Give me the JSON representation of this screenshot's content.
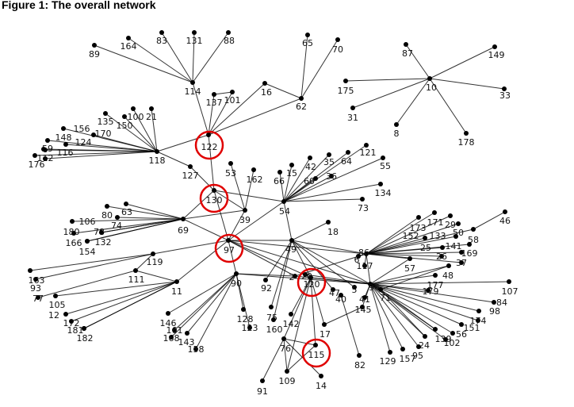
{
  "figure": {
    "title": "Figure 1: The overall network"
  },
  "colors": {
    "edge": "#000000",
    "node": "#000000",
    "highlight": "#e00000"
  },
  "highlighted": [
    "122",
    "130",
    "97",
    "120",
    "115"
  ],
  "nodes": [
    "89",
    "164",
    "83",
    "131",
    "88",
    "114",
    "65",
    "70",
    "16",
    "62",
    "137",
    "101",
    "175",
    "31",
    "87",
    "149",
    "10",
    "33",
    "8",
    "178",
    "118",
    "21",
    "100",
    "150",
    "135",
    "156",
    "170",
    "148",
    "124",
    "116",
    "59",
    "112",
    "176",
    "127",
    "122",
    "130",
    "53",
    "162",
    "39",
    "54",
    "66",
    "15",
    "42",
    "60",
    "35",
    "64",
    "36",
    "121",
    "55",
    "134",
    "73",
    "69",
    "63",
    "80",
    "74",
    "106",
    "78",
    "180",
    "132",
    "166",
    "154",
    "97",
    "119",
    "111",
    "11",
    "163",
    "93",
    "77",
    "105",
    "12",
    "172",
    "181",
    "182",
    "90",
    "128",
    "123",
    "146",
    "161",
    "168",
    "143",
    "158",
    "92",
    "49",
    "18",
    "2",
    "20",
    "120",
    "47",
    "40",
    "5",
    "6",
    "117",
    "86",
    "96",
    "71",
    "41",
    "145",
    "75",
    "160",
    "142",
    "17",
    "76",
    "115",
    "109",
    "91",
    "14",
    "82",
    "173",
    "171",
    "29",
    "50",
    "46",
    "58",
    "152",
    "133",
    "141",
    "25",
    "169",
    "26",
    "37",
    "57",
    "48",
    "177",
    "179",
    "107",
    "84",
    "98",
    "174",
    "151",
    "56",
    "102",
    "139",
    "24",
    "95",
    "157",
    "129"
  ],
  "edges": [
    [
      "114",
      "89"
    ],
    [
      "114",
      "164"
    ],
    [
      "114",
      "83"
    ],
    [
      "114",
      "131"
    ],
    [
      "114",
      "88"
    ],
    [
      "114",
      "122"
    ],
    [
      "137",
      "101"
    ],
    [
      "137",
      "122"
    ],
    [
      "101",
      "122"
    ],
    [
      "16",
      "122"
    ],
    [
      "16",
      "62"
    ],
    [
      "62",
      "65"
    ],
    [
      "62",
      "70"
    ],
    [
      "62",
      "122"
    ],
    [
      "10",
      "175"
    ],
    [
      "10",
      "31"
    ],
    [
      "10",
      "87"
    ],
    [
      "10",
      "149"
    ],
    [
      "10",
      "33"
    ],
    [
      "10",
      "8"
    ],
    [
      "10",
      "178"
    ],
    [
      "118",
      "21"
    ],
    [
      "118",
      "100"
    ],
    [
      "118",
      "150"
    ],
    [
      "118",
      "135"
    ],
    [
      "118",
      "156"
    ],
    [
      "118",
      "170"
    ],
    [
      "118",
      "148"
    ],
    [
      "118",
      "124"
    ],
    [
      "118",
      "116"
    ],
    [
      "118",
      "59"
    ],
    [
      "118",
      "112"
    ],
    [
      "118",
      "176"
    ],
    [
      "118",
      "122"
    ],
    [
      "118",
      "127"
    ],
    [
      "127",
      "130"
    ],
    [
      "122",
      "130"
    ],
    [
      "130",
      "69"
    ],
    [
      "130",
      "39"
    ],
    [
      "130",
      "97"
    ],
    [
      "130",
      "54"
    ],
    [
      "39",
      "53"
    ],
    [
      "39",
      "162"
    ],
    [
      "39",
      "97"
    ],
    [
      "39",
      "69"
    ],
    [
      "54",
      "66"
    ],
    [
      "54",
      "15"
    ],
    [
      "54",
      "42"
    ],
    [
      "54",
      "60"
    ],
    [
      "54",
      "35"
    ],
    [
      "54",
      "64"
    ],
    [
      "54",
      "36"
    ],
    [
      "54",
      "121"
    ],
    [
      "54",
      "55"
    ],
    [
      "54",
      "134"
    ],
    [
      "54",
      "73"
    ],
    [
      "54",
      "97"
    ],
    [
      "54",
      "49"
    ],
    [
      "69",
      "63"
    ],
    [
      "69",
      "80"
    ],
    [
      "69",
      "74"
    ],
    [
      "69",
      "106"
    ],
    [
      "69",
      "78"
    ],
    [
      "69",
      "180"
    ],
    [
      "69",
      "132"
    ],
    [
      "69",
      "166"
    ],
    [
      "69",
      "154"
    ],
    [
      "69",
      "97"
    ],
    [
      "97",
      "119"
    ],
    [
      "97",
      "11"
    ],
    [
      "97",
      "90"
    ],
    [
      "97",
      "49"
    ],
    [
      "97",
      "96"
    ],
    [
      "97",
      "86"
    ],
    [
      "97",
      "2"
    ],
    [
      "97",
      "120"
    ],
    [
      "119",
      "163"
    ],
    [
      "119",
      "93"
    ],
    [
      "119",
      "111"
    ],
    [
      "111",
      "77"
    ],
    [
      "111",
      "11"
    ],
    [
      "11",
      "105"
    ],
    [
      "11",
      "12"
    ],
    [
      "11",
      "172"
    ],
    [
      "11",
      "181"
    ],
    [
      "11",
      "182"
    ],
    [
      "90",
      "146"
    ],
    [
      "90",
      "161"
    ],
    [
      "90",
      "168"
    ],
    [
      "90",
      "143"
    ],
    [
      "90",
      "158"
    ],
    [
      "90",
      "128"
    ],
    [
      "90",
      "123"
    ],
    [
      "90",
      "2"
    ],
    [
      "90",
      "96"
    ],
    [
      "49",
      "18"
    ],
    [
      "49",
      "120"
    ],
    [
      "49",
      "96"
    ],
    [
      "49",
      "86"
    ],
    [
      "49",
      "92"
    ],
    [
      "49",
      "75"
    ],
    [
      "49",
      "160"
    ],
    [
      "49",
      "5"
    ],
    [
      "49",
      "47"
    ],
    [
      "2",
      "96"
    ],
    [
      "20",
      "96"
    ],
    [
      "2",
      "86"
    ],
    [
      "120",
      "96"
    ],
    [
      "120",
      "142"
    ],
    [
      "120",
      "76"
    ],
    [
      "120",
      "115"
    ],
    [
      "120",
      "17"
    ],
    [
      "120",
      "109"
    ],
    [
      "76",
      "115"
    ],
    [
      "76",
      "14"
    ],
    [
      "76",
      "91"
    ],
    [
      "76",
      "109"
    ],
    [
      "109",
      "115"
    ],
    [
      "17",
      "145"
    ],
    [
      "40",
      "82"
    ],
    [
      "86",
      "173"
    ],
    [
      "86",
      "171"
    ],
    [
      "86",
      "29"
    ],
    [
      "86",
      "50"
    ],
    [
      "86",
      "152"
    ],
    [
      "86",
      "133"
    ],
    [
      "86",
      "141"
    ],
    [
      "86",
      "25"
    ],
    [
      "86",
      "169"
    ],
    [
      "86",
      "26"
    ],
    [
      "86",
      "37"
    ],
    [
      "86",
      "58"
    ],
    [
      "58",
      "46"
    ],
    [
      "86",
      "6"
    ],
    [
      "86",
      "117"
    ],
    [
      "86",
      "96"
    ],
    [
      "86",
      "57"
    ],
    [
      "96",
      "48"
    ],
    [
      "96",
      "177"
    ],
    [
      "96",
      "179"
    ],
    [
      "96",
      "107"
    ],
    [
      "96",
      "84"
    ],
    [
      "96",
      "98"
    ],
    [
      "96",
      "174"
    ],
    [
      "96",
      "151"
    ],
    [
      "96",
      "56"
    ],
    [
      "96",
      "102"
    ],
    [
      "96",
      "139"
    ],
    [
      "96",
      "24"
    ],
    [
      "96",
      "95"
    ],
    [
      "96",
      "157"
    ],
    [
      "96",
      "129"
    ],
    [
      "96",
      "145"
    ],
    [
      "96",
      "71"
    ],
    [
      "96",
      "41"
    ],
    [
      "57",
      "96"
    ],
    [
      "48",
      "71"
    ],
    [
      "71",
      "139"
    ],
    [
      "71",
      "24"
    ]
  ]
}
